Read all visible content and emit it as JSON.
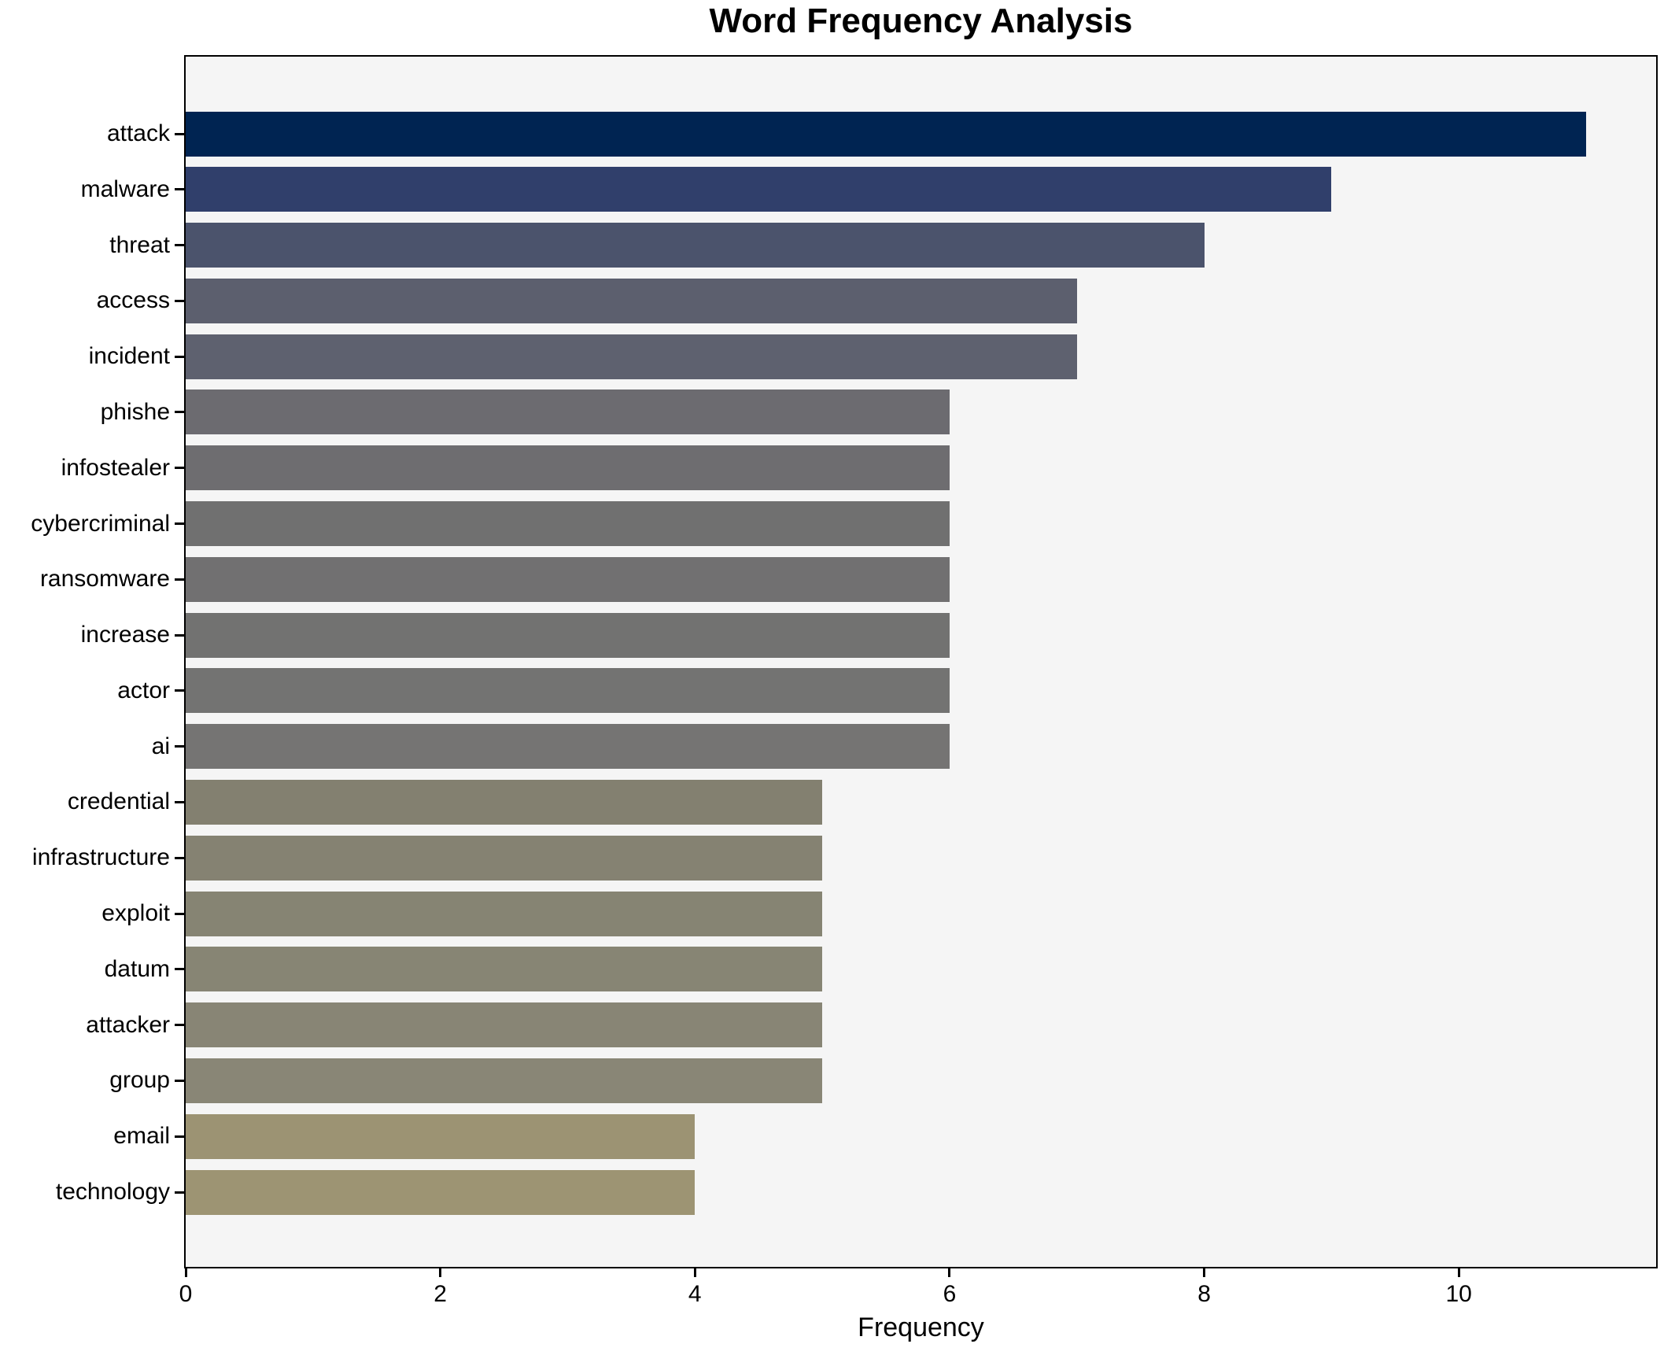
{
  "page": {
    "background": "#ffffff",
    "plot_background": "#f5f5f5",
    "frame_color": "#000000"
  },
  "chart_data": {
    "type": "bar",
    "orientation": "horizontal",
    "title": "Word Frequency Analysis",
    "xlabel": "Frequency",
    "ylabel": "",
    "categories": [
      "attack",
      "malware",
      "threat",
      "access",
      "incident",
      "phishe",
      "infostealer",
      "cybercriminal",
      "ransomware",
      "increase",
      "actor",
      "ai",
      "credential",
      "infrastructure",
      "exploit",
      "datum",
      "attacker",
      "group",
      "email",
      "technology"
    ],
    "values": [
      11,
      9,
      8,
      7,
      7,
      6,
      6,
      6,
      6,
      6,
      6,
      6,
      5,
      5,
      5,
      5,
      5,
      5,
      4,
      4
    ],
    "bar_colors": [
      "#002452",
      "#303f6b",
      "#4b536c",
      "#5c5f6e",
      "#5e616f",
      "#6c6b70",
      "#6e6d70",
      "#707070",
      "#717071",
      "#727271",
      "#737372",
      "#757473",
      "#838070",
      "#858272",
      "#868473",
      "#878574",
      "#888575",
      "#898676",
      "#9c9373",
      "#9d9473"
    ],
    "xticks": [
      0,
      2,
      4,
      6,
      8,
      10
    ],
    "xlim": [
      0,
      11.55
    ],
    "grid": false,
    "legend_position": "none"
  }
}
